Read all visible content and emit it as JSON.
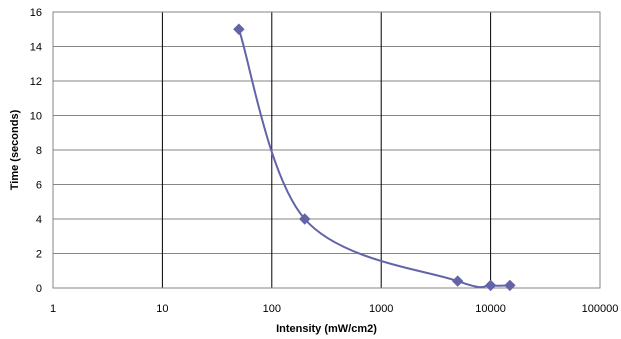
{
  "chart_data": {
    "type": "scatter",
    "title": "",
    "xlabel": "Intensity (mW/cm2)",
    "ylabel": "Time (seconds)",
    "x_scale": "log",
    "xlim": [
      1,
      100000
    ],
    "ylim": [
      0,
      16
    ],
    "x_ticks": [
      1,
      10,
      100,
      1000,
      10000,
      100000
    ],
    "x_tick_labels": [
      "1",
      "10",
      "100",
      "1000",
      "10000",
      "100000"
    ],
    "y_ticks": [
      0,
      2,
      4,
      6,
      8,
      10,
      12,
      14,
      16
    ],
    "y_tick_labels": [
      "0",
      "2",
      "4",
      "6",
      "8",
      "10",
      "12",
      "14",
      "16"
    ],
    "grid": "horizontal and vertical major gridlines",
    "legend": "none",
    "smoothed_line": true,
    "marker": "diamond",
    "series": [
      {
        "color": "#6264A7",
        "x": [
          50,
          200,
          5000,
          10000,
          15000
        ],
        "y": [
          15,
          4,
          0.4,
          0.15,
          0.15
        ]
      }
    ]
  }
}
